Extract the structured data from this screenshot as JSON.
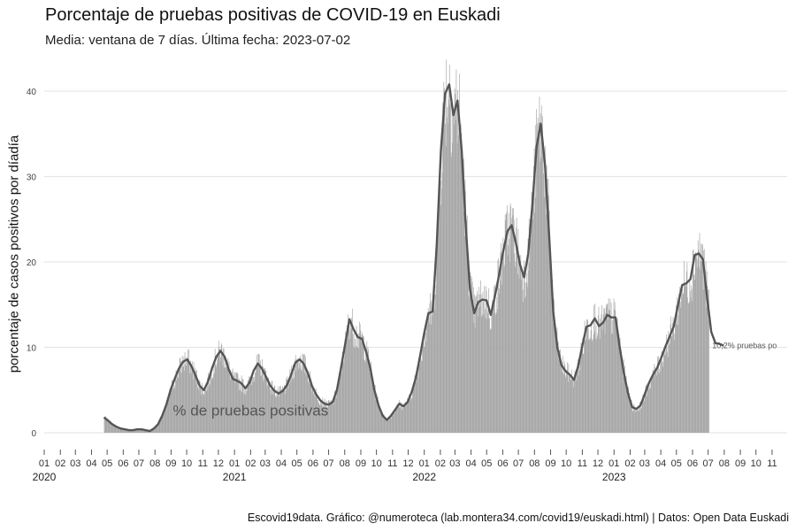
{
  "title": "Porcentaje de pruebas positivas de COVID-19 en Euskadi",
  "subtitle": "Media: ventana de 7 días. Última fecha: 2023-07-02",
  "caption": "Escovid19data. Gráfico: @numeroteca (lab.montera34.com/covid19/euskadi.html) | Datos: Open Data Euskadi",
  "colors": {
    "bars": "#a8a8a8",
    "line": "#555555",
    "grid": "#e6e6e6",
    "inner_label": "#555555"
  },
  "chart_data": {
    "type": "bar",
    "title": "Porcentaje de pruebas positivas de COVID-19 en Euskadi",
    "subtitle": "Media: ventana de 7 días. Última fecha: 2023-07-02",
    "ylabel": "porcentaje de casos positivos por díadía",
    "xlabel": "",
    "ylim": [
      0,
      42
    ],
    "yticks": [
      0,
      10,
      20,
      30,
      40
    ],
    "xlim": [
      "2020-01-01",
      "2023-11-30"
    ],
    "grid": true,
    "x_tick_labels": [
      "01",
      "02",
      "03",
      "04",
      "05",
      "06",
      "07",
      "08",
      "09",
      "10",
      "11",
      "12",
      "01",
      "02",
      "03",
      "04",
      "05",
      "06",
      "07",
      "08",
      "09",
      "10",
      "11",
      "12",
      "01",
      "02",
      "03",
      "04",
      "05",
      "06",
      "07",
      "08",
      "09",
      "10",
      "11",
      "12",
      "01",
      "02",
      "03",
      "04",
      "05",
      "06",
      "07",
      "08",
      "09",
      "10",
      "11"
    ],
    "year_labels": [
      "2020",
      "2021",
      "2022",
      "2023"
    ],
    "series": [
      {
        "kind": "bar",
        "label_on_chart": "% de pruebas positivas",
        "start_date": "2020-04-25",
        "end_date": "2023-07-02",
        "daily_step": 1,
        "y": [
          1.8,
          1.4,
          1.0,
          0.7,
          0.5,
          0.4,
          0.3,
          0.3,
          0.4,
          0.4,
          0.3,
          0.2,
          0.5,
          1.0,
          2.0,
          3.3,
          5.0,
          6.3,
          7.5,
          8.3,
          8.6,
          7.8,
          6.7,
          5.5,
          5.0,
          6.0,
          7.6,
          8.9,
          9.6,
          8.9,
          7.4,
          6.3,
          6.1,
          5.8,
          5.2,
          5.9,
          7.3,
          8.1,
          7.5,
          6.5,
          5.5,
          4.9,
          4.6,
          4.9,
          5.6,
          6.8,
          8.2,
          8.6,
          8.1,
          7.0,
          5.5,
          4.5,
          3.8,
          3.4,
          3.3,
          3.6,
          5.0,
          7.6,
          10.4,
          13.3,
          12.1,
          11.2,
          11.0,
          9.5,
          7.6,
          5.0,
          3.2,
          2.0,
          1.5,
          2.0,
          2.7,
          3.4,
          3.1,
          3.6,
          4.8,
          6.5,
          9.0,
          11.7,
          14.0,
          14.2,
          22.0,
          33.0,
          39.7,
          40.8,
          37.2,
          38.9,
          33.1,
          24.0,
          16.8,
          14.0,
          15.3,
          15.6,
          15.5,
          13.8,
          16.0,
          18.5,
          21.3,
          23.6,
          24.3,
          22.3,
          19.7,
          18.2,
          21.0,
          26.8,
          33.5,
          36.2,
          31.5,
          23.3,
          14.2,
          10.0,
          7.9,
          7.2,
          6.8,
          6.2,
          7.8,
          10.2,
          12.4,
          12.6,
          13.4,
          12.5,
          12.9,
          13.8,
          13.5,
          13.5,
          10.0,
          7.0,
          4.6,
          3.0,
          2.8,
          3.2,
          4.5,
          5.8,
          6.8,
          7.6,
          8.8,
          10.1,
          11.3,
          12.5,
          15.0,
          17.3,
          17.5,
          18.0,
          20.8,
          21.0,
          20.3,
          15.8,
          11.8,
          10.5,
          10.4,
          10.2
        ],
        "start_offset_days": 0,
        "sample_interval_days": 8
      },
      {
        "kind": "line",
        "label": "10,2% pruebas po",
        "start_date": "2020-04-25",
        "sample_interval_days": 8,
        "y": [
          1.8,
          1.4,
          1.0,
          0.7,
          0.5,
          0.4,
          0.3,
          0.3,
          0.4,
          0.4,
          0.3,
          0.2,
          0.5,
          1.0,
          2.0,
          3.3,
          5.0,
          6.3,
          7.5,
          8.3,
          8.6,
          7.8,
          6.7,
          5.5,
          5.0,
          6.0,
          7.6,
          8.9,
          9.6,
          8.9,
          7.4,
          6.3,
          6.1,
          5.8,
          5.2,
          5.9,
          7.3,
          8.1,
          7.5,
          6.5,
          5.5,
          4.9,
          4.6,
          4.9,
          5.6,
          6.8,
          8.2,
          8.6,
          8.1,
          7.0,
          5.5,
          4.5,
          3.8,
          3.4,
          3.3,
          3.6,
          5.0,
          7.6,
          10.4,
          13.3,
          12.1,
          11.2,
          11.0,
          9.5,
          7.6,
          5.0,
          3.2,
          2.0,
          1.5,
          2.0,
          2.7,
          3.4,
          3.1,
          3.6,
          4.8,
          6.5,
          9.0,
          11.7,
          14.0,
          14.2,
          22.0,
          33.0,
          39.7,
          40.8,
          37.2,
          38.9,
          33.1,
          24.0,
          16.8,
          14.0,
          15.3,
          15.6,
          15.5,
          13.8,
          16.0,
          18.5,
          21.3,
          23.6,
          24.3,
          22.3,
          19.7,
          18.2,
          21.0,
          26.8,
          33.5,
          36.2,
          31.5,
          23.3,
          14.2,
          10.0,
          7.9,
          7.2,
          6.8,
          6.2,
          7.8,
          10.2,
          12.4,
          12.6,
          13.4,
          12.5,
          12.9,
          13.8,
          13.5,
          13.5,
          10.0,
          7.0,
          4.6,
          3.0,
          2.8,
          3.2,
          4.5,
          5.8,
          6.8,
          7.6,
          8.8,
          10.1,
          11.3,
          12.5,
          15.0,
          17.3,
          17.5,
          18.0,
          20.8,
          21.0,
          20.3,
          15.8,
          11.8,
          10.5,
          10.4,
          10.2
        ],
        "last_value": 10.2
      }
    ],
    "annotations": [
      {
        "text": "% de pruebas positivas",
        "x": "2020-09-01",
        "y": 2.0
      },
      {
        "text": "10,2% pruebas po",
        "x": "2023-07-02",
        "y": 10.2
      }
    ]
  }
}
